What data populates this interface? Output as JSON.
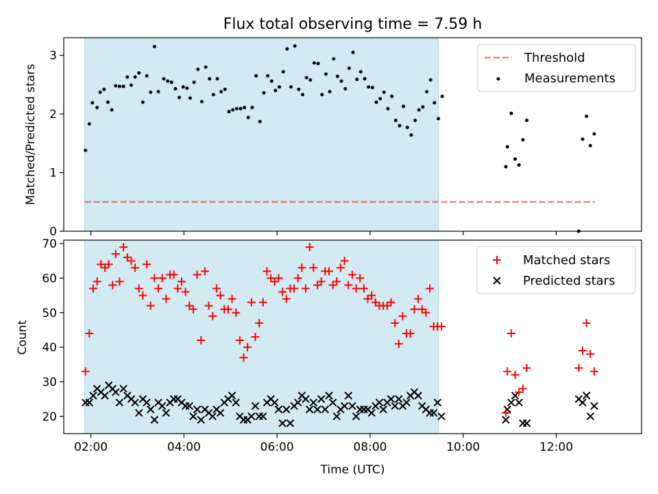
{
  "title": "Flux total observing time = 7.59 h",
  "colors": {
    "shade": "#add8e6",
    "threshold": "#ff0000",
    "measurement": "#000000",
    "matched": "#ff0000",
    "predicted": "#000000"
  },
  "chart_data": [
    {
      "type": "scatter",
      "ylabel": "Matched/Predicted stars",
      "xlim": [
        "01:25",
        "13:50"
      ],
      "ylim": [
        0,
        3.3
      ],
      "yticks": [
        0,
        1,
        2,
        3
      ],
      "shaded_interval": [
        "01:52",
        "09:28"
      ],
      "legend": {
        "position": "top-right",
        "entries": [
          "Threshold",
          "Measurements"
        ]
      },
      "threshold": {
        "name": "Threshold",
        "value": 0.5,
        "x_range": [
          "01:52",
          "12:50"
        ],
        "style": "dashed"
      },
      "series": [
        {
          "name": "Measurements",
          "marker": "dot",
          "points": [
            [
              "01:53",
              1.38
            ],
            [
              "01:58",
              1.83
            ],
            [
              "02:02",
              2.19
            ],
            [
              "02:08",
              2.11
            ],
            [
              "02:12",
              2.37
            ],
            [
              "02:17",
              2.42
            ],
            [
              "02:22",
              2.2
            ],
            [
              "02:27",
              2.07
            ],
            [
              "02:32",
              2.48
            ],
            [
              "02:37",
              2.47
            ],
            [
              "02:42",
              2.47
            ],
            [
              "02:47",
              2.63
            ],
            [
              "02:52",
              2.49
            ],
            [
              "02:57",
              2.63
            ],
            [
              "03:02",
              2.7
            ],
            [
              "03:07",
              2.2
            ],
            [
              "03:12",
              2.65
            ],
            [
              "03:17",
              2.37
            ],
            [
              "03:22",
              3.15
            ],
            [
              "03:27",
              2.38
            ],
            [
              "03:34",
              2.6
            ],
            [
              "03:39",
              2.56
            ],
            [
              "03:44",
              2.54
            ],
            [
              "03:49",
              2.43
            ],
            [
              "03:54",
              2.28
            ],
            [
              "03:59",
              2.46
            ],
            [
              "04:04",
              2.44
            ],
            [
              "04:08",
              2.27
            ],
            [
              "04:13",
              2.54
            ],
            [
              "04:18",
              2.76
            ],
            [
              "04:23",
              2.21
            ],
            [
              "04:28",
              2.8
            ],
            [
              "04:33",
              2.6
            ],
            [
              "04:38",
              2.33
            ],
            [
              "04:43",
              2.6
            ],
            [
              "04:48",
              2.38
            ],
            [
              "04:53",
              2.42
            ],
            [
              "04:58",
              2.04
            ],
            [
              "05:03",
              2.07
            ],
            [
              "05:08",
              2.09
            ],
            [
              "05:13",
              2.09
            ],
            [
              "05:18",
              2.11
            ],
            [
              "05:23",
              1.94
            ],
            [
              "05:28",
              2.11
            ],
            [
              "05:33",
              2.65
            ],
            [
              "05:38",
              1.87
            ],
            [
              "05:43",
              2.36
            ],
            [
              "05:48",
              2.65
            ],
            [
              "05:53",
              2.56
            ],
            [
              "05:58",
              2.4
            ],
            [
              "06:03",
              2.46
            ],
            [
              "06:08",
              2.72
            ],
            [
              "06:13",
              3.11
            ],
            [
              "06:18",
              2.46
            ],
            [
              "06:23",
              3.16
            ],
            [
              "06:28",
              2.42
            ],
            [
              "06:33",
              2.33
            ],
            [
              "06:38",
              2.62
            ],
            [
              "06:43",
              2.58
            ],
            [
              "06:48",
              2.87
            ],
            [
              "06:53",
              2.86
            ],
            [
              "06:58",
              2.33
            ],
            [
              "07:03",
              2.68
            ],
            [
              "07:08",
              2.38
            ],
            [
              "07:13",
              2.94
            ],
            [
              "07:18",
              2.64
            ],
            [
              "07:23",
              2.56
            ],
            [
              "07:28",
              2.43
            ],
            [
              "07:33",
              2.78
            ],
            [
              "07:38",
              3.05
            ],
            [
              "07:43",
              2.59
            ],
            [
              "07:48",
              2.72
            ],
            [
              "07:53",
              2.6
            ],
            [
              "07:58",
              2.46
            ],
            [
              "08:03",
              2.45
            ],
            [
              "08:08",
              2.2
            ],
            [
              "08:13",
              2.26
            ],
            [
              "08:18",
              2.37
            ],
            [
              "08:23",
              2.09
            ],
            [
              "08:28",
              2.3
            ],
            [
              "08:33",
              1.89
            ],
            [
              "08:38",
              1.8
            ],
            [
              "08:43",
              2.13
            ],
            [
              "08:48",
              1.77
            ],
            [
              "08:53",
              1.64
            ],
            [
              "08:58",
              1.89
            ],
            [
              "09:03",
              2.07
            ],
            [
              "09:08",
              2.12
            ],
            [
              "09:13",
              2.38
            ],
            [
              "09:18",
              2.58
            ],
            [
              "09:23",
              2.19
            ],
            [
              "09:28",
              1.92
            ],
            [
              "09:33",
              2.3
            ],
            [
              "10:55",
              1.1
            ],
            [
              "10:57",
              1.44
            ],
            [
              "11:02",
              2.01
            ],
            [
              "11:07",
              1.23
            ],
            [
              "11:12",
              1.13
            ],
            [
              "11:17",
              1.56
            ],
            [
              "11:22",
              1.89
            ],
            [
              "12:29",
              0.0
            ],
            [
              "12:34",
              1.57
            ],
            [
              "12:39",
              1.96
            ],
            [
              "12:44",
              1.46
            ],
            [
              "12:49",
              1.66
            ]
          ]
        }
      ]
    },
    {
      "type": "scatter",
      "xlabel": "Time (UTC)",
      "ylabel": "Count",
      "xlim": [
        "01:25",
        "13:50"
      ],
      "ylim": [
        15,
        71
      ],
      "yticks": [
        20,
        30,
        40,
        50,
        60,
        70
      ],
      "xticks": [
        "02:00",
        "04:00",
        "06:00",
        "08:00",
        "10:00",
        "12:00"
      ],
      "shaded_interval": [
        "01:52",
        "09:28"
      ],
      "legend": {
        "position": "top-right",
        "entries": [
          "Matched stars",
          "Predicted stars"
        ]
      },
      "series": [
        {
          "name": "Matched stars",
          "marker": "plus",
          "x": [
            "01:53",
            "01:58",
            "02:03",
            "02:08",
            "02:13",
            "02:18",
            "02:23",
            "02:28",
            "02:32",
            "02:37",
            "02:42",
            "02:47",
            "02:52",
            "02:57",
            "03:02",
            "03:07",
            "03:12",
            "03:17",
            "03:22",
            "03:27",
            "03:32",
            "03:37",
            "03:42",
            "03:47",
            "03:52",
            "03:57",
            "04:02",
            "04:07",
            "04:12",
            "04:17",
            "04:22",
            "04:27",
            "04:32",
            "04:37",
            "04:42",
            "04:47",
            "04:52",
            "04:57",
            "05:02",
            "05:07",
            "05:12",
            "05:17",
            "05:22",
            "05:27",
            "05:32",
            "05:37",
            "05:42",
            "05:47",
            "05:52",
            "05:57",
            "06:02",
            "06:07",
            "06:12",
            "06:17",
            "06:22",
            "06:27",
            "06:32",
            "06:37",
            "06:42",
            "06:47",
            "06:52",
            "06:57",
            "07:02",
            "07:07",
            "07:12",
            "07:17",
            "07:22",
            "07:27",
            "07:32",
            "07:37",
            "07:42",
            "07:47",
            "07:52",
            "07:57",
            "08:02",
            "08:07",
            "08:12",
            "08:17",
            "08:22",
            "08:27",
            "08:32",
            "08:37",
            "08:42",
            "08:47",
            "08:52",
            "08:57",
            "09:02",
            "09:07",
            "09:12",
            "09:17",
            "09:22",
            "09:27",
            "09:32",
            "10:55",
            "10:57",
            "11:02",
            "11:07",
            "11:12",
            "11:17",
            "11:22",
            "12:29",
            "12:34",
            "12:39",
            "12:44",
            "12:49"
          ],
          "values": [
            33,
            44,
            57,
            59,
            64,
            63,
            64,
            58,
            67,
            59,
            69,
            66,
            65,
            63,
            57,
            55,
            64,
            52,
            60,
            57,
            60,
            54,
            61,
            61,
            57,
            59,
            56,
            52,
            51,
            61,
            42,
            62,
            52,
            49,
            57,
            55,
            51,
            51,
            54,
            50,
            42,
            37,
            40,
            53,
            43,
            47,
            53,
            62,
            60,
            59,
            60,
            56,
            54,
            57,
            57,
            60,
            63,
            57,
            69,
            63,
            58,
            59,
            62,
            62,
            58,
            59,
            63,
            65,
            58,
            61,
            57,
            60,
            57,
            54,
            55,
            53,
            52,
            52,
            52,
            53,
            47,
            41,
            49,
            44,
            44,
            51,
            54,
            51,
            50,
            57,
            46,
            46,
            46,
            21,
            33,
            44,
            32,
            27,
            28,
            34,
            34,
            39,
            47,
            38,
            33
          ]
        },
        {
          "name": "Predicted stars",
          "marker": "x",
          "x": [
            "01:53",
            "01:58",
            "02:03",
            "02:08",
            "02:13",
            "02:18",
            "02:23",
            "02:28",
            "02:32",
            "02:37",
            "02:42",
            "02:47",
            "02:52",
            "02:57",
            "03:02",
            "03:07",
            "03:12",
            "03:17",
            "03:22",
            "03:27",
            "03:32",
            "03:37",
            "03:42",
            "03:47",
            "03:52",
            "03:57",
            "04:02",
            "04:07",
            "04:12",
            "04:17",
            "04:22",
            "04:27",
            "04:32",
            "04:37",
            "04:42",
            "04:47",
            "04:52",
            "04:57",
            "05:02",
            "05:07",
            "05:12",
            "05:17",
            "05:22",
            "05:27",
            "05:32",
            "05:37",
            "05:42",
            "05:47",
            "05:52",
            "05:57",
            "06:02",
            "06:07",
            "06:12",
            "06:17",
            "06:22",
            "06:27",
            "06:32",
            "06:37",
            "06:42",
            "06:47",
            "06:52",
            "06:57",
            "07:02",
            "07:07",
            "07:12",
            "07:17",
            "07:22",
            "07:27",
            "07:32",
            "07:37",
            "07:42",
            "07:47",
            "07:52",
            "07:57",
            "08:02",
            "08:07",
            "08:12",
            "08:17",
            "08:22",
            "08:27",
            "08:32",
            "08:37",
            "08:42",
            "08:47",
            "08:52",
            "08:57",
            "09:02",
            "09:07",
            "09:12",
            "09:17",
            "09:22",
            "09:27",
            "09:32",
            "10:55",
            "10:57",
            "11:02",
            "11:07",
            "11:12",
            "11:17",
            "11:22",
            "12:29",
            "12:34",
            "12:39",
            "12:44",
            "12:49"
          ],
          "values": [
            24,
            24,
            26,
            28,
            27,
            26,
            29,
            28,
            27,
            24,
            28,
            26,
            25,
            24,
            21,
            25,
            24,
            22,
            19,
            24,
            23,
            21,
            24,
            25,
            25,
            24,
            23,
            23,
            20,
            22,
            19,
            22,
            21,
            20,
            22,
            21,
            24,
            25,
            26,
            24,
            20,
            19,
            19,
            20,
            23,
            20,
            20,
            24,
            25,
            24,
            22,
            18,
            22,
            18,
            23,
            24,
            26,
            25,
            22,
            24,
            22,
            25,
            22,
            26,
            24,
            20,
            22,
            23,
            26,
            23,
            20,
            22,
            22,
            22,
            21,
            23,
            24,
            22,
            24,
            25,
            23,
            25,
            23,
            24,
            26,
            27,
            26,
            23,
            22,
            21,
            21,
            24,
            20,
            19,
            22,
            24,
            26,
            24,
            18,
            18,
            25,
            24,
            26,
            20,
            23
          ]
        }
      ]
    }
  ]
}
